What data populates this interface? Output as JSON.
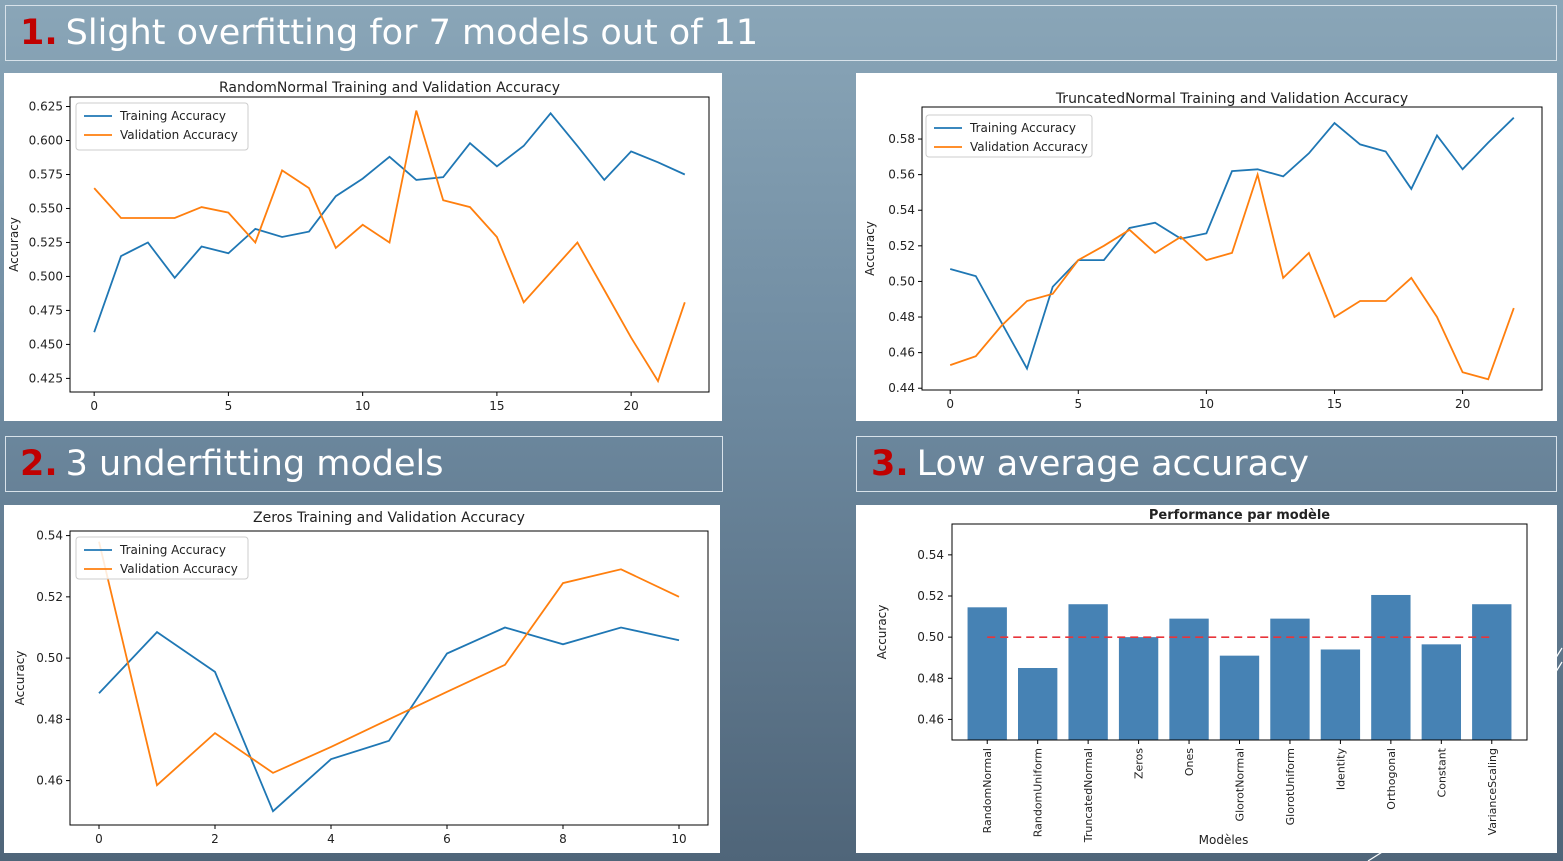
{
  "headings": [
    {
      "num": "1.",
      "text": "Slight overfitting for 7 models out of 11"
    },
    {
      "num": "2.",
      "text": "3 underfitting models"
    },
    {
      "num": "3.",
      "text": "Low average accuracy"
    }
  ],
  "chart_data": [
    {
      "type": "line",
      "title": "RandomNormal Training and Validation Accuracy",
      "xlabel": "",
      "ylabel": "Accuracy",
      "xlim": [
        -0.9,
        22.9
      ],
      "ylim": [
        0.415,
        0.632
      ],
      "xticks": [
        0,
        5,
        10,
        15,
        20
      ],
      "yticks": [
        0.425,
        0.45,
        0.475,
        0.5,
        0.525,
        0.55,
        0.575,
        0.6,
        0.625
      ],
      "ytick_decimals": 3,
      "legend": "top-left",
      "x": [
        0,
        1,
        2,
        3,
        4,
        5,
        6,
        7,
        8,
        9,
        10,
        11,
        12,
        13,
        14,
        15,
        16,
        17,
        18,
        19,
        20,
        21,
        22
      ],
      "series": [
        {
          "name": "Training Accuracy",
          "color": "#1f77b4",
          "values": [
            0.459,
            0.515,
            0.525,
            0.499,
            0.522,
            0.517,
            0.535,
            0.529,
            0.533,
            0.559,
            0.572,
            0.588,
            0.571,
            0.573,
            0.598,
            0.581,
            0.596,
            0.62,
            0.596,
            0.571,
            0.592,
            0.584,
            0.575
          ]
        },
        {
          "name": "Validation Accuracy",
          "color": "#ff7f0e",
          "values": [
            0.565,
            0.543,
            0.543,
            0.543,
            0.551,
            0.547,
            0.525,
            0.578,
            0.565,
            0.521,
            0.538,
            0.525,
            0.622,
            0.556,
            0.551,
            0.529,
            0.481,
            0.503,
            0.525,
            0.49,
            0.455,
            0.423,
            0.481
          ]
        }
      ]
    },
    {
      "type": "line",
      "title": "TruncatedNormal Training and Validation Accuracy",
      "xlabel": "",
      "ylabel": "Accuracy",
      "xlim": [
        -1.1,
        23.1
      ],
      "ylim": [
        0.439,
        0.598
      ],
      "xticks": [
        0,
        5,
        10,
        15,
        20
      ],
      "yticks": [
        0.44,
        0.46,
        0.48,
        0.5,
        0.52,
        0.54,
        0.56,
        0.58
      ],
      "ytick_decimals": 2,
      "legend": "top-left",
      "x": [
        0,
        1,
        2,
        3,
        4,
        5,
        6,
        7,
        8,
        9,
        10,
        11,
        12,
        13,
        14,
        15,
        16,
        17,
        18,
        19,
        20,
        21,
        22
      ],
      "series": [
        {
          "name": "Training Accuracy",
          "color": "#1f77b4",
          "values": [
            0.507,
            0.503,
            0.477,
            0.451,
            0.497,
            0.512,
            0.512,
            0.53,
            0.533,
            0.524,
            0.527,
            0.562,
            0.563,
            0.559,
            0.572,
            0.589,
            0.577,
            0.573,
            0.552,
            0.582,
            0.563,
            0.578,
            0.592
          ]
        },
        {
          "name": "Validation Accuracy",
          "color": "#ff7f0e",
          "values": [
            0.453,
            0.458,
            0.475,
            0.489,
            0.493,
            0.512,
            0.52,
            0.529,
            0.516,
            0.525,
            0.512,
            0.516,
            0.56,
            0.502,
            0.516,
            0.48,
            0.489,
            0.489,
            0.502,
            0.48,
            0.449,
            0.445,
            0.485
          ]
        }
      ]
    },
    {
      "type": "line",
      "title": "Zeros Training and Validation Accuracy",
      "xlabel": "",
      "ylabel": "Accuracy",
      "xlim": [
        -0.5,
        10.5
      ],
      "ylim": [
        0.4455,
        0.5415
      ],
      "xticks": [
        0,
        2,
        4,
        6,
        8,
        10
      ],
      "yticks": [
        0.46,
        0.48,
        0.5,
        0.52,
        0.54
      ],
      "ytick_decimals": 2,
      "legend": "top-left",
      "x": [
        0,
        1,
        2,
        3,
        4,
        5,
        6,
        7,
        8,
        9,
        10
      ],
      "series": [
        {
          "name": "Training Accuracy",
          "color": "#1f77b4",
          "values": [
            0.4885,
            0.5085,
            0.4955,
            0.45,
            0.467,
            0.473,
            0.5015,
            0.51,
            0.5045,
            0.51,
            0.5058
          ]
        },
        {
          "name": "Validation Accuracy",
          "color": "#ff7f0e",
          "values": [
            0.538,
            0.4585,
            0.4755,
            0.4625,
            0.471,
            0.48,
            0.489,
            0.4978,
            0.5245,
            0.529,
            0.52
          ]
        }
      ]
    },
    {
      "type": "bar",
      "title": "Performance par modèle",
      "xlabel": "Modèles",
      "ylabel": "Accuracy",
      "ylim": [
        0.45,
        0.555
      ],
      "yticks": [
        0.46,
        0.48,
        0.5,
        0.52,
        0.54
      ],
      "ytick_decimals": 2,
      "bar_color": "#4682b4",
      "reference_line": {
        "value": 0.5,
        "color": "#e8343a",
        "style": "dashed"
      },
      "categories": [
        "RandomNormal",
        "RandomUniform",
        "TruncatedNormal",
        "Zeros",
        "Ones",
        "GlorotNormal",
        "GlorotUniform",
        "Identity",
        "Orthogonal",
        "Constant",
        "VarianceScaling"
      ],
      "values": [
        0.5145,
        0.485,
        0.516,
        0.5,
        0.509,
        0.491,
        0.509,
        0.494,
        0.5205,
        0.4965,
        0.516
      ]
    }
  ]
}
